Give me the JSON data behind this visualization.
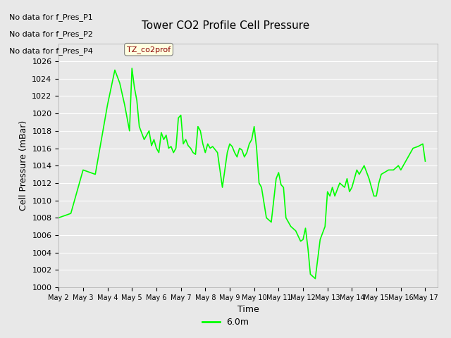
{
  "title": "Tower CO2 Profile Cell Pressure",
  "xlabel": "Time",
  "ylabel": "Cell Pressure (mBar)",
  "line_color": "#00ff00",
  "line_label": "TZ_co2prof",
  "legend_label": "6.0m",
  "ylim": [
    1000,
    1028
  ],
  "yticks": [
    1000,
    1002,
    1004,
    1006,
    1008,
    1010,
    1012,
    1014,
    1016,
    1018,
    1020,
    1022,
    1024,
    1026
  ],
  "xtick_labels": [
    "May 2",
    "May 3",
    "May 4",
    "May 5",
    "May 6",
    "May 7",
    "May 8",
    "May 9",
    "May 10",
    "May 11",
    "May 12",
    "May 13",
    "May 14",
    "May 15",
    "May 16",
    "May 17"
  ],
  "no_data_texts": [
    "No data for f_Pres_P1",
    "No data for f_Pres_P2",
    "No data for f_Pres_P4"
  ],
  "bg_color": "#e8e8e8",
  "plot_bg_color": "#e8e8e8",
  "x_values": [
    0,
    0.5,
    1.0,
    1.5,
    2.0,
    2.3,
    2.5,
    2.7,
    2.9,
    3.0,
    3.1,
    3.2,
    3.3,
    3.5,
    3.7,
    3.8,
    3.9,
    4.0,
    4.1,
    4.2,
    4.3,
    4.4,
    4.5,
    4.6,
    4.7,
    4.8,
    4.9,
    5.0,
    5.1,
    5.2,
    5.3,
    5.4,
    5.5,
    5.6,
    5.7,
    5.8,
    5.9,
    6.0,
    6.1,
    6.2,
    6.3,
    6.5,
    6.7,
    6.9,
    7.0,
    7.1,
    7.2,
    7.3,
    7.4,
    7.5,
    7.6,
    7.7,
    7.8,
    7.9,
    8.0,
    8.1,
    8.2,
    8.3,
    8.5,
    8.7,
    8.9,
    9.0,
    9.1,
    9.2,
    9.3,
    9.5,
    9.7,
    9.9,
    10.0,
    10.1,
    10.2,
    10.3,
    10.5,
    10.7,
    10.9,
    11.0,
    11.1,
    11.2,
    11.3,
    11.5,
    11.7,
    11.8,
    11.9,
    12.0,
    12.1,
    12.2,
    12.3,
    12.5,
    12.7,
    12.9,
    13.0,
    13.1,
    13.2,
    13.5,
    13.7,
    13.9,
    14.0,
    14.1,
    14.2,
    14.3,
    14.5,
    14.7,
    14.9,
    15.0
  ],
  "y_values": [
    1008.0,
    1008.5,
    1013.5,
    1013.0,
    1021.0,
    1025.0,
    1023.5,
    1021.0,
    1018.0,
    1025.2,
    1023.0,
    1021.5,
    1018.5,
    1017.0,
    1018.0,
    1016.3,
    1017.0,
    1016.0,
    1015.5,
    1017.8,
    1017.0,
    1017.5,
    1016.0,
    1016.2,
    1015.5,
    1016.0,
    1019.5,
    1019.8,
    1016.5,
    1017.0,
    1016.3,
    1016.0,
    1015.5,
    1015.3,
    1018.5,
    1018.0,
    1016.5,
    1015.5,
    1016.5,
    1016.0,
    1016.2,
    1015.5,
    1011.5,
    1015.5,
    1016.5,
    1016.2,
    1015.5,
    1015.0,
    1016.0,
    1015.8,
    1015.0,
    1015.5,
    1016.5,
    1017.0,
    1018.5,
    1016.0,
    1012.0,
    1011.5,
    1008.0,
    1007.5,
    1012.5,
    1013.2,
    1011.8,
    1011.5,
    1008.0,
    1007.0,
    1006.5,
    1005.3,
    1005.5,
    1006.8,
    1004.5,
    1001.5,
    1001.0,
    1005.5,
    1007.0,
    1011.0,
    1010.5,
    1011.5,
    1010.5,
    1012.0,
    1011.5,
    1012.5,
    1011.0,
    1011.5,
    1012.5,
    1013.5,
    1013.0,
    1014.0,
    1012.5,
    1010.5,
    1010.5,
    1012.0,
    1013.0,
    1013.5,
    1013.5,
    1014.0,
    1013.5,
    1014.0,
    1014.5,
    1015.0,
    1016.0,
    1016.2,
    1016.5,
    1014.5
  ]
}
